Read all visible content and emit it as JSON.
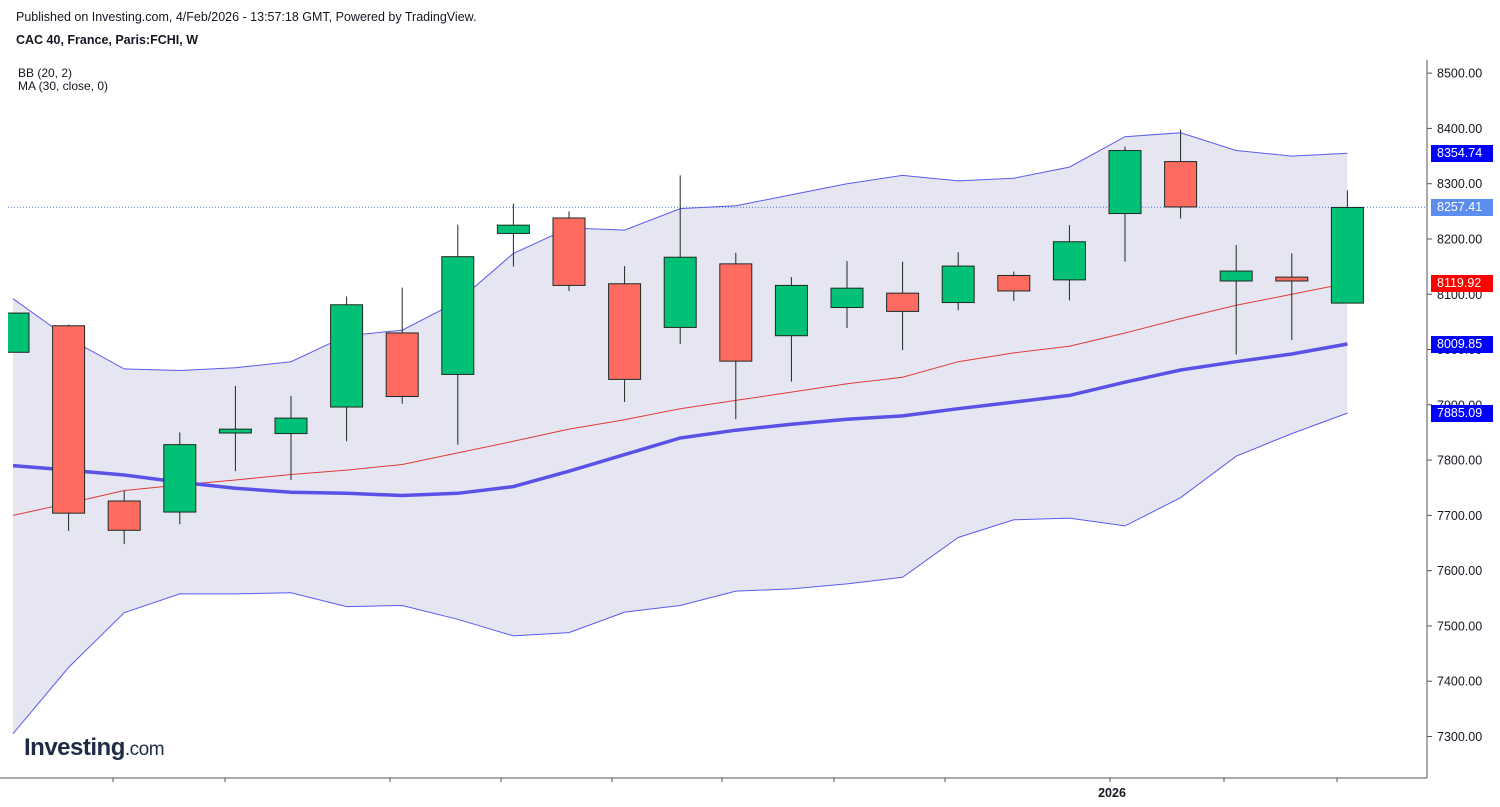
{
  "header": {
    "published": "Published on Investing.com, 4/Feb/2026 - 13:57:18 GMT, Powered by TradingView.",
    "symbol": "CAC 40, France, Paris:FCHI, W"
  },
  "indicators": {
    "bb": "BB (20, 2)",
    "ma": "MA (30, close, 0)"
  },
  "logo": {
    "name": "Investing",
    "suffix": ".com"
  },
  "price_tags": {
    "bb_upper": {
      "text": "8354.74",
      "color": "#0000ff"
    },
    "last_price": {
      "text": "8257.41",
      "color": "#5b8def"
    },
    "bb_basis": {
      "text": "8119.92",
      "color": "#ff0000"
    },
    "ma": {
      "text": "8009.85",
      "color": "#0000ff"
    },
    "bb_lower": {
      "text": "7885.09",
      "color": "#0000ff"
    }
  },
  "colors": {
    "up": "#00c176",
    "down": "#ff6b61",
    "band_fill": "#e6e6f2",
    "band_line": "#5b5bef",
    "basis_line": "#e03a3a",
    "ma_line": "#5a52e6",
    "last_price_line": "#4a74d8"
  },
  "chart_data": {
    "type": "candlestick",
    "title": "CAC 40, France, Paris:FCHI, W",
    "x_tick_labels": [
      "2026"
    ],
    "y_ticks": [
      "7300.00",
      "7400.00",
      "7500.00",
      "7600.00",
      "7700.00",
      "7800.00",
      "7900.00",
      "8000.00",
      "8100.00",
      "8200.00",
      "8300.00",
      "8400.00",
      "8500.00"
    ],
    "ylim": [
      7230,
      8530
    ],
    "last_price": 8257.41,
    "candles": [
      {
        "o": 7995,
        "h": 8066,
        "l": 7995,
        "c": 8066
      },
      {
        "o": 8043,
        "h": 8045,
        "l": 7672,
        "c": 7704
      },
      {
        "o": 7726,
        "h": 7745,
        "l": 7648,
        "c": 7673
      },
      {
        "o": 7706,
        "h": 7850,
        "l": 7684,
        "c": 7828
      },
      {
        "o": 7849,
        "h": 7934,
        "l": 7780,
        "c": 7856
      },
      {
        "o": 7848,
        "h": 7916,
        "l": 7764,
        "c": 7876
      },
      {
        "o": 7896,
        "h": 8096,
        "l": 7834,
        "c": 8081
      },
      {
        "o": 8030,
        "h": 8112,
        "l": 7902,
        "c": 7915
      },
      {
        "o": 7955,
        "h": 8226,
        "l": 7828,
        "c": 8168
      },
      {
        "o": 8210,
        "h": 8264,
        "l": 8150,
        "c": 8225
      },
      {
        "o": 8238,
        "h": 8250,
        "l": 8106,
        "c": 8116
      },
      {
        "o": 8119,
        "h": 8151,
        "l": 7905,
        "c": 7946
      },
      {
        "o": 8040,
        "h": 8315,
        "l": 8010,
        "c": 8167
      },
      {
        "o": 8155,
        "h": 8175,
        "l": 7874,
        "c": 7979
      },
      {
        "o": 8025,
        "h": 8131,
        "l": 7942,
        "c": 8116
      },
      {
        "o": 8076,
        "h": 8160,
        "l": 8039,
        "c": 8111
      },
      {
        "o": 8102,
        "h": 8159,
        "l": 7999,
        "c": 8069
      },
      {
        "o": 8085,
        "h": 8176,
        "l": 8071,
        "c": 8151
      },
      {
        "o": 8134,
        "h": 8141,
        "l": 8088,
        "c": 8106
      },
      {
        "o": 8126,
        "h": 8225,
        "l": 8089,
        "c": 8195
      },
      {
        "o": 8246,
        "h": 8367,
        "l": 8159,
        "c": 8360
      },
      {
        "o": 8340,
        "h": 8398,
        "l": 8237,
        "c": 8258
      },
      {
        "o": 8124,
        "h": 8189,
        "l": 7991,
        "c": 8142
      },
      {
        "o": 8131,
        "h": 8174,
        "l": 8017,
        "c": 8124
      },
      {
        "o": 8084,
        "h": 8288,
        "l": 8084,
        "c": 8257
      }
    ],
    "bb_upper": [
      8092,
      8020,
      7965,
      7962,
      7967,
      7978,
      8025,
      8035,
      8087,
      8174,
      8220,
      8216,
      8255,
      8260,
      8280,
      8300,
      8315,
      8305,
      8310,
      8330,
      8385,
      8392,
      8360,
      8350,
      8355
    ],
    "bb_basis": [
      7700,
      7722,
      7745,
      7755,
      7764,
      7774,
      7782,
      7792,
      7813,
      7834,
      7856,
      7873,
      7893,
      7908,
      7923,
      7938,
      7950,
      7978,
      7994,
      8006,
      8030,
      8056,
      8080,
      8100,
      8120
    ],
    "bb_lower": [
      7305,
      7425,
      7524,
      7558,
      7558,
      7560,
      7535,
      7537,
      7512,
      7482,
      7488,
      7525,
      7537,
      7563,
      7567,
      7576,
      7588,
      7660,
      7692,
      7695,
      7681,
      7732,
      7807,
      7848,
      7885
    ],
    "ma": [
      7790,
      7782,
      7773,
      7760,
      7749,
      7742,
      7740,
      7736,
      7740,
      7752,
      7780,
      7810,
      7840,
      7854,
      7865,
      7874,
      7880,
      7893,
      7905,
      7917,
      7941,
      7963,
      7978,
      7992,
      8010
    ]
  }
}
